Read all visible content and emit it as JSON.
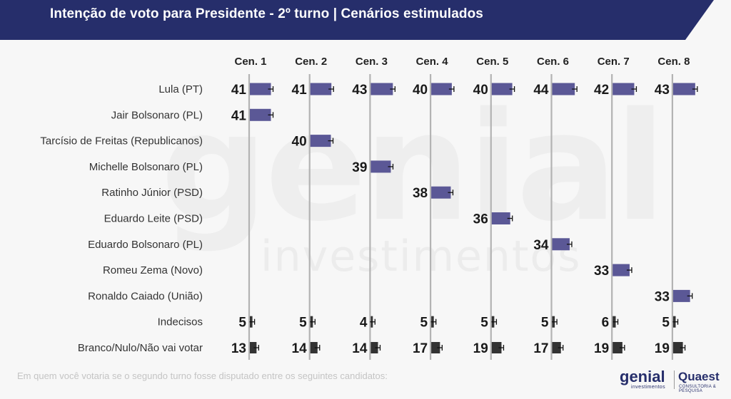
{
  "title": "Intenção de voto para Presidente - 2º turno | Cenários estimulados",
  "footer": "Em quem você votaria se o segundo turno fosse disputado entre os seguintes candidatos:",
  "logos": {
    "genial": "genial",
    "genial_sub": "investimentos",
    "quaest": "Quaest",
    "quaest_sub": "CONSULTORIA & PESQUISA"
  },
  "watermark": {
    "big": "genial",
    "small": "investimentos"
  },
  "colors": {
    "header_bg": "#262e6b",
    "candidate_bar": "#5b5896",
    "other_bar": "#333333",
    "gridline": "#b3b3b3"
  },
  "chart_data": {
    "type": "bar",
    "orientation": "horizontal",
    "categories": [
      "Cen. 1",
      "Cen. 2",
      "Cen. 3",
      "Cen. 4",
      "Cen. 5",
      "Cen. 6",
      "Cen. 7",
      "Cen. 8"
    ],
    "rows": [
      "Lula (PT)",
      "Jair Bolsonaro (PL)",
      "Tarcísio de Freitas (Republicanos)",
      "Michelle Bolsonaro (PL)",
      "Ratinho Júnior (PSD)",
      "Eduardo Leite (PSD)",
      "Eduardo Bolsonaro (PL)",
      "Romeu Zema (Novo)",
      "Ronaldo Caiado (União)",
      "Indecisos",
      "Branco/Nulo/Não vai votar"
    ],
    "series": [
      {
        "name": "Lula (PT)",
        "values": [
          41,
          41,
          43,
          40,
          40,
          44,
          42,
          43
        ]
      },
      {
        "name": "Jair Bolsonaro (PL)",
        "values": [
          41,
          null,
          null,
          null,
          null,
          null,
          null,
          null
        ]
      },
      {
        "name": "Tarcísio de Freitas (Republicanos)",
        "values": [
          null,
          40,
          null,
          null,
          null,
          null,
          null,
          null
        ]
      },
      {
        "name": "Michelle Bolsonaro (PL)",
        "values": [
          null,
          null,
          39,
          null,
          null,
          null,
          null,
          null
        ]
      },
      {
        "name": "Ratinho Júnior (PSD)",
        "values": [
          null,
          null,
          null,
          38,
          null,
          null,
          null,
          null
        ]
      },
      {
        "name": "Eduardo Leite (PSD)",
        "values": [
          null,
          null,
          null,
          null,
          36,
          null,
          null,
          null
        ]
      },
      {
        "name": "Eduardo Bolsonaro (PL)",
        "values": [
          null,
          null,
          null,
          null,
          null,
          34,
          null,
          null
        ]
      },
      {
        "name": "Romeu Zema (Novo)",
        "values": [
          null,
          null,
          null,
          null,
          null,
          null,
          33,
          null
        ]
      },
      {
        "name": "Ronaldo Caiado (União)",
        "values": [
          null,
          null,
          null,
          null,
          null,
          null,
          null,
          33
        ]
      },
      {
        "name": "Indecisos",
        "values": [
          5,
          5,
          4,
          5,
          5,
          5,
          6,
          5
        ]
      },
      {
        "name": "Branco/Nulo/Não vai votar",
        "values": [
          13,
          14,
          14,
          17,
          19,
          17,
          19,
          19
        ]
      }
    ],
    "error_bars": true,
    "grid": "vertical line per scenario"
  }
}
